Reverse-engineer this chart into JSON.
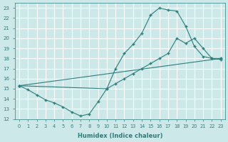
{
  "xlabel": "Humidex (Indice chaleur)",
  "xlim": [
    -0.5,
    23.5
  ],
  "ylim": [
    12,
    23.5
  ],
  "bg_color": "#cde8e8",
  "grid_color": "#b0d8d8",
  "line_color": "#2e7d7d",
  "line1_x": [
    0,
    1,
    2,
    3,
    4,
    5,
    6,
    7,
    8,
    9,
    10,
    11,
    12,
    13,
    14,
    15,
    16,
    17,
    18,
    19,
    20,
    21,
    22,
    23
  ],
  "line1_y": [
    15.3,
    14.9,
    14.4,
    13.9,
    13.6,
    13.2,
    12.7,
    12.3,
    12.5,
    13.7,
    15.0,
    17.0,
    18.5,
    19.4,
    20.5,
    22.3,
    23.0,
    22.8,
    22.7,
    21.2,
    19.2,
    18.2,
    18.0,
    17.9
  ],
  "line2_x": [
    0,
    23
  ],
  "line2_y": [
    15.3,
    18.0
  ],
  "line3_x": [
    0,
    10,
    11,
    12,
    13,
    14,
    15,
    16,
    17,
    18,
    19,
    20,
    21,
    22,
    23
  ],
  "line3_y": [
    15.3,
    15.0,
    15.5,
    16.0,
    16.5,
    17.0,
    17.5,
    18.0,
    18.5,
    20.0,
    19.5,
    20.0,
    19.0,
    18.0,
    18.0
  ],
  "xticks": [
    0,
    1,
    2,
    3,
    4,
    5,
    6,
    7,
    8,
    9,
    10,
    11,
    12,
    13,
    14,
    15,
    16,
    17,
    18,
    19,
    20,
    21,
    22,
    23
  ],
  "yticks": [
    12,
    13,
    14,
    15,
    16,
    17,
    18,
    19,
    20,
    21,
    22,
    23
  ]
}
